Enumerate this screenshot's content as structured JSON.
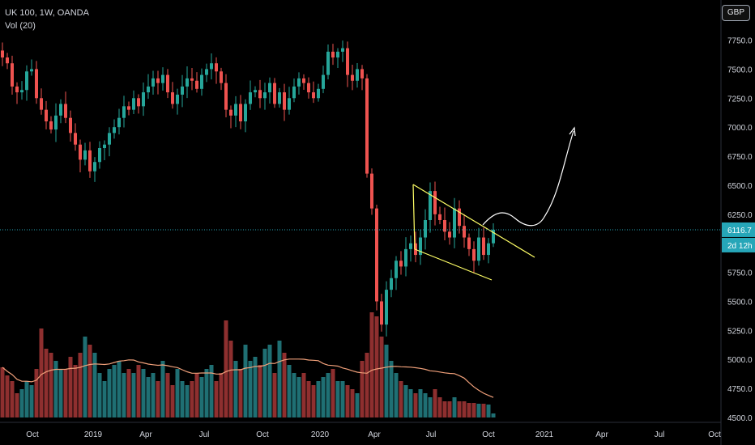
{
  "legend": {
    "symbol_line": "UK 100, 1W, OANDA",
    "indicator_line": "Vol (20)"
  },
  "currency_label": "GBP",
  "colors": {
    "background": "#000000",
    "up": "#26a69a",
    "down": "#ef5350",
    "vol_up": "#1f6f73",
    "vol_down": "#8e2f2f",
    "vol_ma": "#f0a07a",
    "pattern_lines": "#ffff66",
    "projection": "#ffffff",
    "price_line": "#26a6b8",
    "axis_text": "#d1d4dc"
  },
  "chart_data": {
    "type": "candlestick",
    "symbol": "UK 100",
    "interval": "1W",
    "source": "OANDA",
    "y_ticks": [
      7750.0,
      7500.0,
      7250.0,
      7000.0,
      6750.0,
      6500.0,
      6250.0,
      6000.0,
      5750.0,
      5500.0,
      5250.0,
      5000.0,
      4750.0,
      4500.0
    ],
    "ylim": [
      4500,
      7900
    ],
    "x_ticks": [
      "Oct",
      "2019",
      "Apr",
      "Jul",
      "Oct",
      "2020",
      "Apr",
      "Jul",
      "Oct",
      "2021",
      "Apr",
      "Jul",
      "Oct"
    ],
    "current_price_label": "6116.7",
    "countdown_label": "2d 12h",
    "current_price": 6116.7,
    "close_series": [
      7600,
      7550,
      7350,
      7300,
      7320,
      7480,
      7500,
      7250,
      7150,
      7050,
      6980,
      7100,
      7200,
      7080,
      6950,
      6850,
      6720,
      6800,
      6620,
      6700,
      6820,
      6850,
      6950,
      7000,
      7080,
      7180,
      7150,
      7250,
      7180,
      7300,
      7350,
      7420,
      7380,
      7450,
      7300,
      7200,
      7280,
      7350,
      7420,
      7400,
      7330,
      7450,
      7500,
      7550,
      7480,
      7380,
      7150,
      7100,
      7200,
      7050,
      7200,
      7300,
      7320,
      7250,
      7300,
      7380,
      7200,
      7300,
      7150,
      7250,
      7350,
      7420,
      7380,
      7300,
      7250,
      7330,
      7450,
      7650,
      7600,
      7650,
      7680,
      7450,
      7400,
      7500,
      7420,
      6600,
      6300,
      5500,
      5300,
      5600,
      5700,
      5850,
      5800,
      5950,
      6000,
      5900,
      6050,
      6200,
      6450,
      6250,
      6200,
      6100,
      6050,
      6300,
      6150,
      6050,
      5950,
      5850,
      6050,
      5900,
      6000,
      6116.7
    ],
    "volume_series": [
      62,
      52,
      45,
      30,
      35,
      45,
      40,
      60,
      110,
      85,
      80,
      70,
      60,
      60,
      75,
      65,
      80,
      100,
      90,
      80,
      55,
      45,
      60,
      65,
      70,
      55,
      60,
      55,
      65,
      60,
      50,
      55,
      45,
      70,
      55,
      40,
      60,
      45,
      40,
      45,
      55,
      50,
      60,
      65,
      45,
      55,
      120,
      95,
      70,
      60,
      90,
      70,
      75,
      65,
      85,
      90,
      55,
      95,
      80,
      65,
      55,
      50,
      55,
      45,
      40,
      45,
      50,
      55,
      60,
      45,
      45,
      40,
      35,
      30,
      70,
      80,
      130,
      125,
      100,
      90,
      70,
      55,
      45,
      40,
      35,
      30,
      35,
      30,
      25,
      35,
      25,
      20,
      20,
      25,
      20,
      20,
      18,
      18,
      17,
      17,
      16,
      5
    ],
    "x_domain": {
      "start": "2018-08",
      "end": "2021-10"
    }
  }
}
